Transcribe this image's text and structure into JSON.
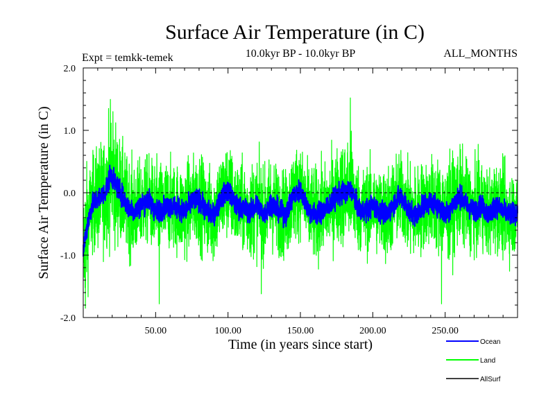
{
  "chart_data": {
    "type": "line",
    "title": "Surface Air Temperature (in C)",
    "subtitle_left": "Expt = temkk-temek",
    "subtitle_center": "10.0kyr BP - 10.0kyr BP",
    "subtitle_right": "ALL_MONTHS",
    "xlabel": "Time (in years since start)",
    "ylabel": "Surface Air Temperature (in C)",
    "xlim": [
      0,
      300
    ],
    "ylim": [
      -2.0,
      2.0
    ],
    "x_ticks": [
      50,
      100,
      150,
      200,
      250
    ],
    "x_tick_labels": [
      "50.00",
      "100.00",
      "150.00",
      "200.00",
      "250.00"
    ],
    "y_ticks": [
      2.0,
      1.0,
      0.0,
      -1.0,
      -2.0
    ],
    "y_tick_labels": [
      "2.0",
      "1.0",
      "0.0",
      "-1.0",
      "-2.0"
    ],
    "reference_line": {
      "y": 0.0,
      "style": "dashed"
    },
    "series": [
      {
        "name": "Land",
        "color": "#00ff00",
        "description": "monthly land-mean anomaly, high variance",
        "x": [
          0,
          3,
          6,
          10,
          15,
          19,
          22,
          26,
          30,
          35,
          40,
          45,
          50,
          55,
          60,
          65,
          70,
          75,
          80,
          85,
          90,
          95,
          100,
          105,
          110,
          115,
          120,
          125,
          130,
          135,
          140,
          145,
          150,
          155,
          160,
          165,
          170,
          175,
          180,
          185,
          190,
          195,
          200,
          205,
          210,
          215,
          220,
          225,
          230,
          235,
          240,
          245,
          250,
          255,
          260,
          265,
          270,
          275,
          280,
          285,
          290,
          295,
          300
        ],
        "values": [
          -0.9,
          -0.5,
          -0.2,
          -0.1,
          0.0,
          0.3,
          0.15,
          0.0,
          -0.2,
          -0.3,
          -0.2,
          -0.1,
          -0.3,
          -0.25,
          -0.2,
          -0.25,
          -0.3,
          -0.15,
          -0.1,
          -0.3,
          -0.35,
          -0.1,
          0.05,
          -0.2,
          -0.25,
          -0.3,
          -0.2,
          -0.35,
          -0.15,
          -0.3,
          -0.35,
          -0.05,
          0.05,
          -0.25,
          -0.35,
          -0.3,
          -0.2,
          -0.05,
          0.0,
          0.05,
          -0.25,
          -0.3,
          -0.2,
          -0.3,
          -0.35,
          -0.15,
          -0.05,
          -0.3,
          -0.35,
          -0.2,
          -0.15,
          -0.2,
          -0.35,
          -0.2,
          -0.05,
          -0.2,
          -0.3,
          -0.2,
          -0.35,
          -0.2,
          -0.3,
          -0.35,
          -0.3
        ],
        "amplitude": [
          0.8,
          0.75,
          0.6,
          0.65,
          0.7,
          0.8,
          0.75,
          0.65,
          0.6,
          0.6,
          0.55,
          0.55,
          0.6,
          0.6,
          0.55,
          0.55,
          0.6,
          0.55,
          0.6,
          0.55,
          0.6,
          0.6,
          0.6,
          0.55,
          0.55,
          0.6,
          0.6,
          0.55,
          0.6,
          0.55,
          0.55,
          0.6,
          0.55,
          0.55,
          0.6,
          0.55,
          0.55,
          0.6,
          0.65,
          0.7,
          0.55,
          0.55,
          0.55,
          0.55,
          0.6,
          0.55,
          0.55,
          0.55,
          0.6,
          0.55,
          0.55,
          0.6,
          0.65,
          0.6,
          0.6,
          0.55,
          0.55,
          0.55,
          0.55,
          0.55,
          0.55,
          0.55,
          0.5
        ],
        "extremes": [
          {
            "x": 1.5,
            "value": -1.85
          },
          {
            "x": 17.5,
            "value": 1.35
          },
          {
            "x": 20.5,
            "value": 1.3
          },
          {
            "x": 52.5,
            "value": -1.78
          },
          {
            "x": 123.0,
            "value": -1.62
          },
          {
            "x": 184.5,
            "value": 1.52
          },
          {
            "x": 247.5,
            "value": -1.78
          }
        ]
      },
      {
        "name": "Ocean",
        "color": "#0000ff",
        "description": "monthly ocean-mean anomaly, low variance",
        "x": [
          0,
          3,
          6,
          10,
          15,
          19,
          22,
          26,
          30,
          35,
          40,
          45,
          50,
          55,
          60,
          65,
          70,
          75,
          80,
          85,
          90,
          95,
          100,
          105,
          110,
          115,
          120,
          125,
          130,
          135,
          140,
          145,
          150,
          155,
          160,
          165,
          170,
          175,
          180,
          185,
          190,
          195,
          200,
          205,
          210,
          215,
          220,
          225,
          230,
          235,
          240,
          245,
          250,
          255,
          260,
          265,
          270,
          275,
          280,
          285,
          290,
          295,
          300
        ],
        "values": [
          -0.9,
          -0.5,
          -0.2,
          -0.1,
          0.0,
          0.3,
          0.15,
          0.0,
          -0.2,
          -0.3,
          -0.2,
          -0.1,
          -0.3,
          -0.25,
          -0.2,
          -0.25,
          -0.3,
          -0.15,
          -0.1,
          -0.3,
          -0.35,
          -0.1,
          0.05,
          -0.2,
          -0.25,
          -0.3,
          -0.2,
          -0.35,
          -0.15,
          -0.3,
          -0.35,
          -0.05,
          0.05,
          -0.25,
          -0.35,
          -0.3,
          -0.2,
          -0.05,
          0.0,
          0.05,
          -0.25,
          -0.3,
          -0.2,
          -0.3,
          -0.35,
          -0.15,
          -0.05,
          -0.3,
          -0.35,
          -0.2,
          -0.15,
          -0.2,
          -0.35,
          -0.2,
          -0.05,
          -0.2,
          -0.3,
          -0.2,
          -0.35,
          -0.2,
          -0.3,
          -0.35,
          -0.3
        ],
        "amplitude": 0.12
      },
      {
        "name": "AllSurf",
        "color": "#000000",
        "description": "all-surface mean (drawn beneath ocean)",
        "values": []
      }
    ],
    "legend": {
      "placement": "bottom-right",
      "entries": [
        {
          "label": "Ocean",
          "color": "#0000ff"
        },
        {
          "label": "Land",
          "color": "#00ff00"
        },
        {
          "label": "AllSurf",
          "color": "#000000"
        }
      ]
    }
  }
}
